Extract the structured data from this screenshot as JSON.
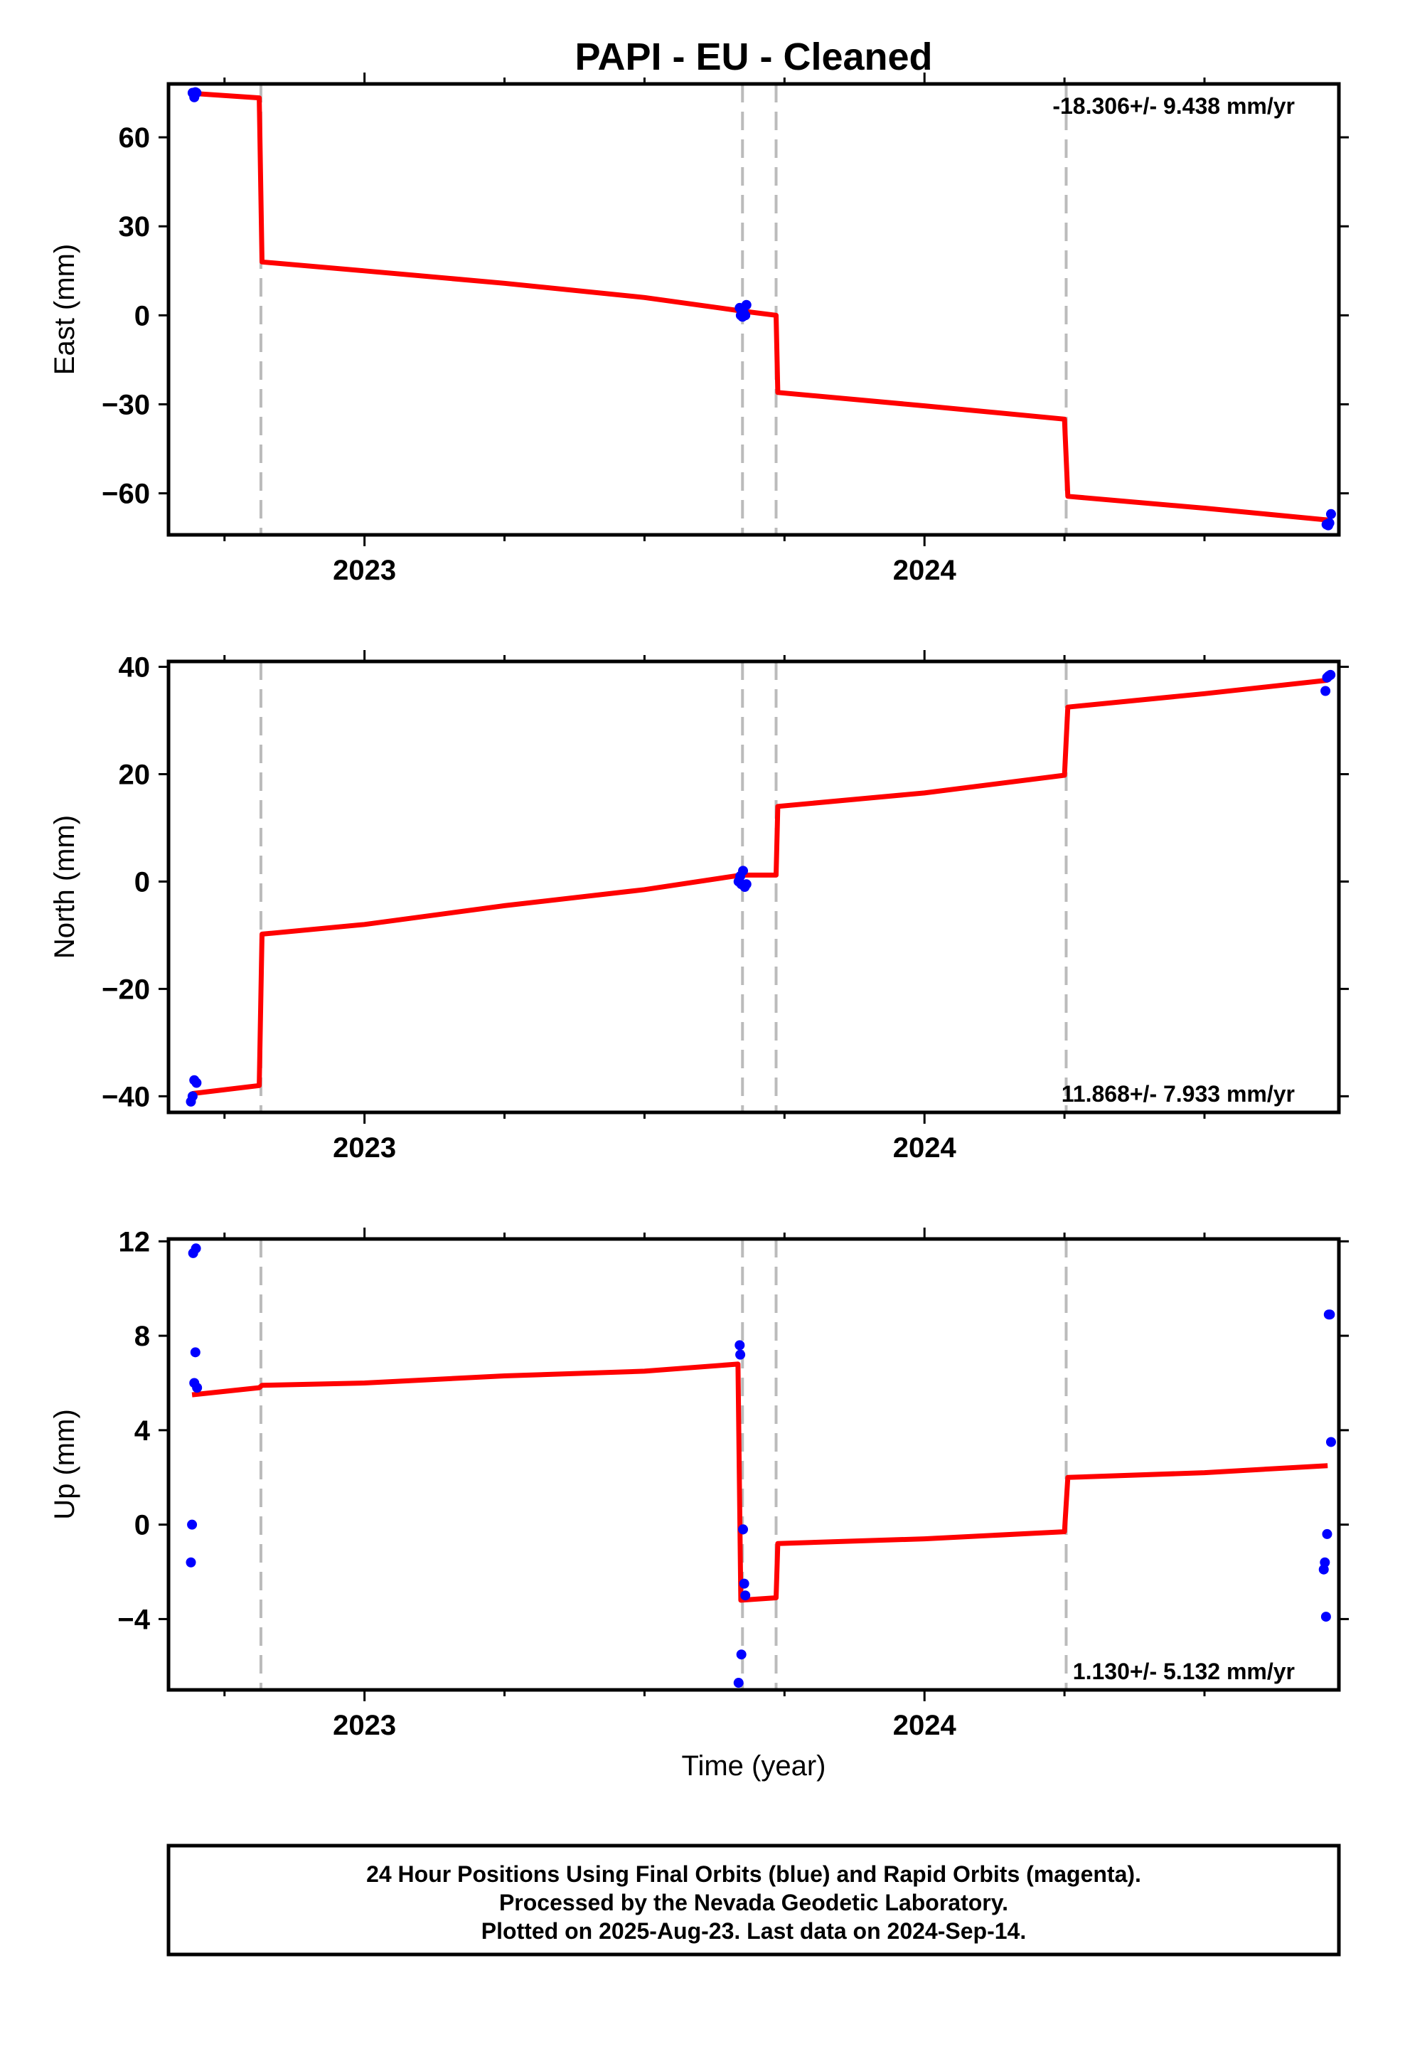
{
  "chart_data": {
    "type": "scatter",
    "title": "PAPI  - EU - Cleaned",
    "xlabel": "Time (year)",
    "x_range": [
      2022.65,
      2024.74
    ],
    "x_ticks": [
      {
        "value": 2023.0,
        "label": "2023"
      },
      {
        "value": 2024.0,
        "label": "2024"
      }
    ],
    "x_minor_ticks": [
      2022.75,
      2023.25,
      2023.5,
      2023.75,
      2024.25,
      2024.5
    ],
    "breaks": [
      2022.815,
      2023.675,
      2023.735,
      2024.253
    ],
    "colors": {
      "final_orbits": "#0000ff",
      "model": "#ff0000",
      "breaks": "#bbbbbb"
    },
    "panels": [
      {
        "name": "east",
        "ylabel": "East (mm)",
        "ylim": [
          -74,
          78
        ],
        "yticks": [
          -60,
          -30,
          0,
          30,
          60
        ],
        "rate_text": "-18.306+/- 9.438 mm/yr",
        "rate_position": "top-right",
        "model": [
          [
            2022.692,
            74.8
          ],
          [
            2022.812,
            73.3
          ],
          [
            2022.817,
            18.0
          ],
          [
            2023.0,
            15.0
          ],
          [
            2023.25,
            10.8
          ],
          [
            2023.5,
            6.0
          ],
          [
            2023.672,
            1.5
          ],
          [
            2023.735,
            0.0
          ],
          [
            2023.738,
            -26.0
          ],
          [
            2024.0,
            -30.5
          ],
          [
            2024.25,
            -35.0
          ],
          [
            2024.256,
            -61.0
          ],
          [
            2024.5,
            -65.0
          ],
          [
            2024.72,
            -69.0
          ]
        ],
        "points": [
          [
            2022.693,
            75.0
          ],
          [
            2022.696,
            73.5
          ],
          [
            2022.698,
            75.2
          ],
          [
            2022.7,
            75.0
          ],
          [
            2023.67,
            2.5
          ],
          [
            2023.672,
            0.0
          ],
          [
            2023.675,
            -0.5
          ],
          [
            2023.677,
            1.0
          ],
          [
            2023.68,
            0.0
          ],
          [
            2023.682,
            3.5
          ],
          [
            2024.718,
            -70.5
          ],
          [
            2024.721,
            -70.8
          ],
          [
            2024.723,
            -70.0
          ],
          [
            2024.726,
            -67.0
          ]
        ]
      },
      {
        "name": "north",
        "ylabel": "North (mm)",
        "ylim": [
          -43,
          41
        ],
        "yticks": [
          -40,
          -20,
          0,
          20,
          40
        ],
        "rate_text": "11.868+/- 7.933 mm/yr",
        "rate_position": "bottom-right",
        "model": [
          [
            2022.692,
            -39.5
          ],
          [
            2022.812,
            -38.0
          ],
          [
            2022.817,
            -9.8
          ],
          [
            2023.0,
            -8.0
          ],
          [
            2023.25,
            -4.5
          ],
          [
            2023.5,
            -1.5
          ],
          [
            2023.672,
            1.2
          ],
          [
            2023.735,
            1.2
          ],
          [
            2023.738,
            14.0
          ],
          [
            2024.0,
            16.5
          ],
          [
            2024.25,
            19.8
          ],
          [
            2024.256,
            32.5
          ],
          [
            2024.5,
            35.0
          ],
          [
            2024.72,
            37.5
          ]
        ],
        "points": [
          [
            2022.69,
            -41.0
          ],
          [
            2022.693,
            -40.0
          ],
          [
            2022.696,
            -37.0
          ],
          [
            2022.7,
            -37.5
          ],
          [
            2023.668,
            0.0
          ],
          [
            2023.671,
            1.0
          ],
          [
            2023.673,
            -0.5
          ],
          [
            2023.676,
            2.0
          ],
          [
            2023.679,
            -1.0
          ],
          [
            2023.682,
            -0.5
          ],
          [
            2024.716,
            35.5
          ],
          [
            2024.719,
            38.0
          ],
          [
            2024.722,
            38.3
          ],
          [
            2024.725,
            38.5
          ]
        ]
      },
      {
        "name": "up",
        "ylabel": "Up (mm)",
        "ylim": [
          -7,
          12.1
        ],
        "yticks": [
          -4,
          0,
          4,
          8,
          12
        ],
        "rate_text": "1.130+/- 5.132 mm/yr",
        "rate_position": "bottom-right",
        "model": [
          [
            2022.692,
            5.5
          ],
          [
            2022.812,
            5.8
          ],
          [
            2022.817,
            5.9
          ],
          [
            2023.0,
            6.0
          ],
          [
            2023.25,
            6.3
          ],
          [
            2023.5,
            6.5
          ],
          [
            2023.667,
            6.8
          ],
          [
            2023.672,
            -3.2
          ],
          [
            2023.735,
            -3.1
          ],
          [
            2023.738,
            -0.8
          ],
          [
            2024.0,
            -0.6
          ],
          [
            2024.25,
            -0.3
          ],
          [
            2024.256,
            2.0
          ],
          [
            2024.5,
            2.2
          ],
          [
            2024.72,
            2.5
          ]
        ],
        "points": [
          [
            2022.69,
            -1.6
          ],
          [
            2022.692,
            0.0
          ],
          [
            2022.694,
            11.5
          ],
          [
            2022.696,
            6.0
          ],
          [
            2022.698,
            7.3
          ],
          [
            2022.699,
            11.7
          ],
          [
            2022.701,
            5.8
          ],
          [
            2023.668,
            -6.7
          ],
          [
            2023.67,
            7.6
          ],
          [
            2023.671,
            7.2
          ],
          [
            2023.673,
            -5.5
          ],
          [
            2023.676,
            -0.2
          ],
          [
            2023.678,
            -2.5
          ],
          [
            2023.68,
            -3.0
          ],
          [
            2024.713,
            -1.9
          ],
          [
            2024.715,
            -1.6
          ],
          [
            2024.717,
            -3.9
          ],
          [
            2024.719,
            -0.4
          ],
          [
            2024.722,
            8.9
          ],
          [
            2024.724,
            8.9
          ],
          [
            2024.726,
            3.5
          ]
        ]
      }
    ]
  },
  "footer": {
    "line1": "24 Hour Positions Using Final Orbits (blue) and Rapid Orbits (magenta).",
    "line2": "Processed by the Nevada Geodetic Laboratory.",
    "line3": "Plotted on 2025-Aug-23. Last data on 2024-Sep-14."
  }
}
